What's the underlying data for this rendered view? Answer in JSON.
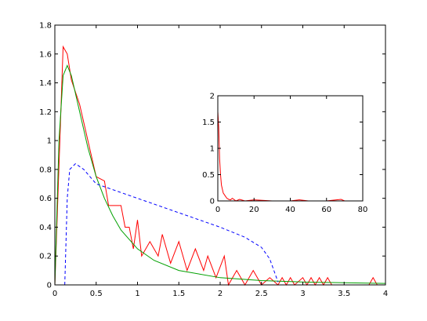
{
  "chart_data": [
    {
      "type": "line",
      "xlim": [
        0,
        4
      ],
      "xticks": [
        0,
        0.5,
        1,
        1.5,
        2,
        2.5,
        3,
        3.5,
        4
      ],
      "ylim": [
        0,
        1.8
      ],
      "yticks": [
        0,
        0.2,
        0.4,
        0.6,
        0.8,
        1,
        1.2,
        1.4,
        1.6,
        1.8
      ],
      "series": [
        {
          "color": "#ff0000",
          "style": "solid",
          "x": [
            0,
            0.1,
            0.15,
            0.2,
            0.3,
            0.4,
            0.5,
            0.6,
            0.65,
            0.8,
            0.85,
            0.9,
            0.95,
            1.0,
            1.05,
            1.15,
            1.25,
            1.3,
            1.4,
            1.5,
            1.6,
            1.7,
            1.8,
            1.85,
            1.95,
            2.05,
            2.1,
            2.2,
            2.3,
            2.4,
            2.5,
            2.6,
            2.7,
            2.75,
            2.8,
            2.85,
            2.9,
            3.0,
            3.05,
            3.1,
            3.15,
            3.2,
            3.25,
            3.3,
            3.35,
            3.8,
            3.85,
            3.9,
            4.0
          ],
          "values": [
            0,
            1.65,
            1.6,
            1.42,
            1.25,
            1.0,
            0.75,
            0.72,
            0.55,
            0.55,
            0.4,
            0.4,
            0.25,
            0.45,
            0.2,
            0.3,
            0.2,
            0.35,
            0.15,
            0.3,
            0.1,
            0.25,
            0.1,
            0.2,
            0.05,
            0.2,
            0,
            0.1,
            0,
            0.1,
            0,
            0.05,
            0,
            0.05,
            0,
            0.05,
            0,
            0.05,
            0,
            0.05,
            0,
            0.05,
            0,
            0.05,
            0,
            0,
            0.05,
            0,
            0
          ]
        },
        {
          "color": "#00a000",
          "style": "solid",
          "x": [
            0,
            0.05,
            0.1,
            0.15,
            0.2,
            0.3,
            0.4,
            0.5,
            0.6,
            0.7,
            0.8,
            1.0,
            1.2,
            1.5,
            2,
            2.5,
            3,
            4
          ],
          "values": [
            0,
            1.0,
            1.45,
            1.52,
            1.45,
            1.2,
            0.95,
            0.75,
            0.6,
            0.48,
            0.38,
            0.25,
            0.17,
            0.1,
            0.05,
            0.03,
            0.02,
            0.01
          ]
        },
        {
          "color": "#0000ff",
          "style": "dashed",
          "x": [
            0.12,
            0.15,
            0.18,
            0.25,
            0.35,
            0.5,
            0.75,
            1.0,
            1.5,
            2.0,
            2.3,
            2.5,
            2.6,
            2.65,
            2.7
          ],
          "values": [
            0,
            0.6,
            0.8,
            0.84,
            0.8,
            0.7,
            0.65,
            0.6,
            0.5,
            0.4,
            0.33,
            0.26,
            0.18,
            0.1,
            0.02
          ]
        }
      ]
    },
    {
      "type": "line",
      "xlim": [
        0,
        80
      ],
      "xticks": [
        0,
        20,
        40,
        60,
        80
      ],
      "ylim": [
        0,
        2
      ],
      "yticks": [
        0,
        0.5,
        1,
        1.5,
        2
      ],
      "series": [
        {
          "color": "#ff0000",
          "style": "solid",
          "x": [
            0,
            0.5,
            1,
            1.5,
            2,
            3,
            4,
            5,
            6,
            7,
            8,
            10,
            12,
            15,
            20,
            30,
            40,
            45,
            50,
            60,
            68,
            70,
            80
          ],
          "values": [
            1.7,
            1.4,
            0.8,
            0.5,
            0.3,
            0.15,
            0.1,
            0.05,
            0.03,
            0.02,
            0.05,
            0,
            0.03,
            0,
            0.02,
            0,
            0,
            0.02,
            0,
            0,
            0.03,
            0,
            0
          ]
        }
      ]
    }
  ]
}
